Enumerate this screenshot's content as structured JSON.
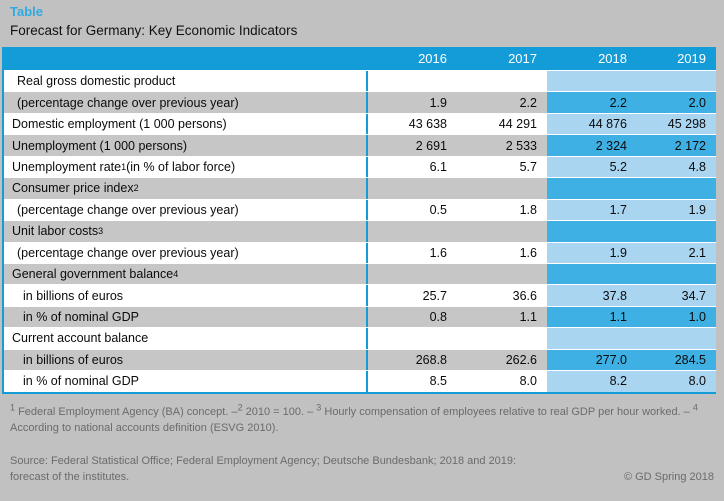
{
  "header": {
    "kicker": "Table",
    "title": "Forecast for Germany: Key Economic Indicators"
  },
  "table": {
    "columns": [
      "2016",
      "2017",
      "2018",
      "2019"
    ],
    "forecast_columns": [
      "2018",
      "2019"
    ],
    "rows": [
      {
        "indent": 1,
        "label_parts": [
          {
            "t": "Real gross domestic product"
          }
        ],
        "values": [
          "",
          "",
          "",
          ""
        ]
      },
      {
        "indent": 1,
        "label_parts": [
          {
            "t": "(percentage change over previous year)"
          }
        ],
        "values": [
          "1.9",
          "2.2",
          "2.2",
          "2.0"
        ]
      },
      {
        "indent": 0,
        "label_parts": [
          {
            "t": "Domestic employment (1 000 persons)"
          }
        ],
        "values": [
          "43 638",
          "44 291",
          "44 876",
          "45 298"
        ]
      },
      {
        "indent": 0,
        "label_parts": [
          {
            "t": "Unemployment (1 000 persons)"
          }
        ],
        "values": [
          "2 691",
          "2 533",
          "2 324",
          "2 172"
        ]
      },
      {
        "indent": 0,
        "label_parts": [
          {
            "t": "Unemployment rate"
          },
          {
            "sup": "1"
          },
          {
            "t": " (in % of labor force)"
          }
        ],
        "values": [
          "6.1",
          "5.7",
          "5.2",
          "4.8"
        ]
      },
      {
        "indent": 0,
        "label_parts": [
          {
            "t": "Consumer price index"
          },
          {
            "sup": "2"
          }
        ],
        "values": [
          "",
          "",
          "",
          ""
        ]
      },
      {
        "indent": 1,
        "label_parts": [
          {
            "t": "(percentage change over previous year)"
          }
        ],
        "values": [
          "0.5",
          "1.8",
          "1.7",
          "1.9"
        ]
      },
      {
        "indent": 0,
        "label_parts": [
          {
            "t": "Unit labor costs"
          },
          {
            "sup": "3"
          }
        ],
        "values": [
          "",
          "",
          "",
          ""
        ]
      },
      {
        "indent": 1,
        "label_parts": [
          {
            "t": "(percentage change over previous year)"
          }
        ],
        "values": [
          "1.6",
          "1.6",
          "1.9",
          "2.1"
        ]
      },
      {
        "indent": 0,
        "label_parts": [
          {
            "t": "General government balance"
          },
          {
            "sup": "4"
          }
        ],
        "values": [
          "",
          "",
          "",
          ""
        ]
      },
      {
        "indent": 2,
        "label_parts": [
          {
            "t": "in billions of euros"
          }
        ],
        "values": [
          "25.7",
          "36.6",
          "37.8",
          "34.7"
        ]
      },
      {
        "indent": 2,
        "label_parts": [
          {
            "t": "in % of nominal GDP"
          }
        ],
        "values": [
          "0.8",
          "1.1",
          "1.1",
          "1.0"
        ]
      },
      {
        "indent": 0,
        "label_parts": [
          {
            "t": "Current account balance"
          }
        ],
        "values": [
          "",
          "",
          "",
          ""
        ]
      },
      {
        "indent": 2,
        "label_parts": [
          {
            "t": "in billions of euros"
          }
        ],
        "values": [
          "268.8",
          "262.6",
          "277.0",
          "284.5"
        ]
      },
      {
        "indent": 2,
        "label_parts": [
          {
            "t": "in % of nominal GDP"
          }
        ],
        "values": [
          "8.5",
          "8.0",
          "8.2",
          "8.0"
        ]
      }
    ]
  },
  "footnotes": {
    "parts": [
      {
        "sup": "1"
      },
      {
        "t": " Federal Employment Agency (BA) concept. –"
      },
      {
        "sup": "2"
      },
      {
        "t": " 2010 = 100. – "
      },
      {
        "sup": "3"
      },
      {
        "t": " Hourly compensation of employees relative to real GDP per hour worked. – "
      },
      {
        "sup": "4"
      },
      {
        "t": " According to national accounts definition (ESVG 2010)."
      }
    ]
  },
  "source": {
    "line1": "Source: Federal Statistical Office; Federal Employment Agency; Deutsche Bundesbank; 2018 and 2019:",
    "line2": "forecast of the institutes.",
    "copyright": "© GD Spring 2018"
  },
  "colors": {
    "page_bg": "#C1C1C1",
    "header_blue": "#149CD8",
    "kicker_blue": "#2FA9E1",
    "row_gray": "#C6C6C6",
    "row_white": "#FFFFFF",
    "forecast_light_blue": "#A9D5F1",
    "forecast_medium_blue": "#3FB0E3",
    "footnote_gray": "#6B6B6B"
  }
}
